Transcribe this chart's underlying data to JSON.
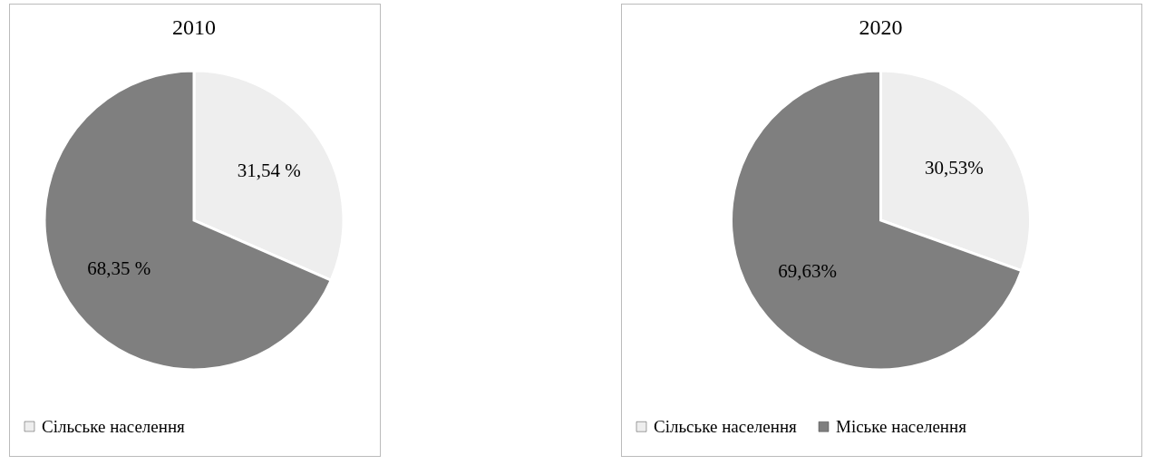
{
  "chart_data": [
    {
      "type": "pie",
      "title": "2010",
      "categories": [
        "Сільське населення",
        null
      ],
      "values": [
        31.54,
        68.35
      ],
      "value_labels": [
        "31,54 %",
        "68,35 %"
      ],
      "colors": [
        "#eeeeee",
        "#7f7f7f"
      ],
      "legend": "bottom"
    },
    {
      "type": "pie",
      "title": "2020",
      "categories": [
        "Сільське населення",
        "Міське населення"
      ],
      "values": [
        30.53,
        69.63
      ],
      "value_labels": [
        "30,53%",
        "69,63%"
      ],
      "colors": [
        "#eeeeee",
        "#7f7f7f"
      ],
      "legend": "bottom"
    }
  ]
}
